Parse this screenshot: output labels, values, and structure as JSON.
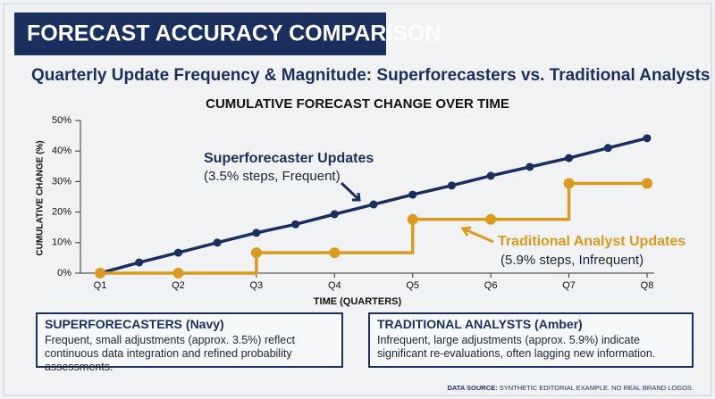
{
  "header": {
    "title": "FORECAST ACCURACY COMPARISON"
  },
  "subtitle": "Quarterly Update Frequency & Magnitude: Superforecasters vs. Traditional Analysts",
  "chart_data": {
    "type": "line",
    "title": "CUMULATIVE FORECAST CHANGE OVER TIME",
    "xlabel": "TIME (QUARTERS)",
    "ylabel": "CUMULATIVE CHANGE (%)",
    "xlim": [
      1,
      8
    ],
    "ylim": [
      0,
      50
    ],
    "xticks": [
      {
        "value": 1,
        "label": "Q1"
      },
      {
        "value": 2,
        "label": "Q2"
      },
      {
        "value": 3,
        "label": "Q3"
      },
      {
        "value": 4,
        "label": "Q4"
      },
      {
        "value": 5,
        "label": "Q5"
      },
      {
        "value": 6,
        "label": "Q6"
      },
      {
        "value": 7,
        "label": "Q7"
      },
      {
        "value": 8,
        "label": "Q8"
      }
    ],
    "yticks": [
      {
        "value": 0,
        "label": "0%"
      },
      {
        "value": 10,
        "label": "10%"
      },
      {
        "value": 20,
        "label": "20%"
      },
      {
        "value": 30,
        "label": "30%"
      },
      {
        "value": 40,
        "label": "40%"
      },
      {
        "value": 50,
        "label": "50%"
      }
    ],
    "series": [
      {
        "name": "Superforecaster Updates",
        "note": "(3.5% steps, Frequent)",
        "color": "#1b2f5e",
        "shape": "smooth",
        "x": [
          1,
          1.5,
          2,
          2.5,
          3,
          3.5,
          4,
          4.5,
          5,
          5.5,
          6,
          6.5,
          7,
          7.5,
          8
        ],
        "values": [
          0,
          3.5,
          6.7,
          10,
          13.2,
          16,
          19.3,
          22.5,
          25.7,
          28.7,
          31.9,
          34.8,
          37.7,
          41,
          44.2
        ]
      },
      {
        "name": "Traditional Analyst Updates",
        "note": "(5.9% steps, Infrequent)",
        "color": "#d99a1e",
        "shape": "step",
        "x": [
          1,
          2,
          3,
          4,
          5,
          6,
          7,
          8
        ],
        "values": [
          0,
          0,
          6.7,
          6.7,
          17.6,
          17.6,
          29.4,
          29.4
        ]
      }
    ]
  },
  "panels": [
    {
      "title": "SUPERFORECASTERS (Navy)",
      "text": "Frequent, small adjustments (approx. 3.5%) reflect continuous data integration and refined probability assessments."
    },
    {
      "title": "TRADITIONAL ANALYSTS (Amber)",
      "text": "Infrequent, large adjustments (approx. 5.9%) indicate significant re-evaluations, often lagging new information."
    }
  ],
  "footer": {
    "label": "DATA SOURCE:",
    "text": "SYNTHETIC EDITORIAL EXAMPLE. NO REAL BRAND LOGOS."
  }
}
